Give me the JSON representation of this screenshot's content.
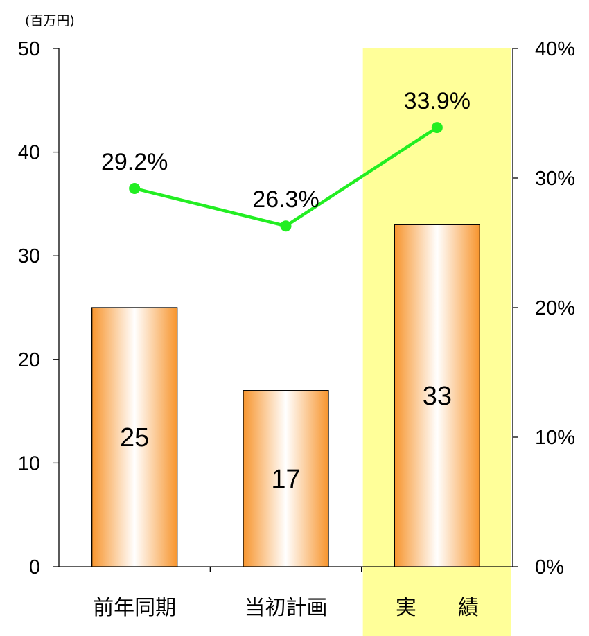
{
  "chart_data": {
    "type": "bar",
    "unit_label": "(百万円)",
    "categories": [
      "前年同期",
      "当初計画",
      "実　　績"
    ],
    "bar_series": {
      "values": [
        25,
        17,
        33
      ],
      "color": "#f7952e"
    },
    "line_series": {
      "values": [
        29.2,
        26.3,
        33.9
      ],
      "labels": [
        "29.2%",
        "26.3%",
        "33.9%"
      ],
      "color": "#22ee22"
    },
    "highlight_category_index": 2,
    "highlight_color": "#ffff99",
    "left_axis": {
      "ylim": [
        0,
        50
      ],
      "ticks": [
        "0",
        "10",
        "20",
        "30",
        "40",
        "50"
      ],
      "tick_values": [
        0,
        10,
        20,
        30,
        40,
        50
      ]
    },
    "right_axis": {
      "ylim": [
        0,
        40
      ],
      "ticks": [
        "0%",
        "10%",
        "20%",
        "30%",
        "40%"
      ],
      "tick_values": [
        0,
        10,
        20,
        30,
        40
      ]
    },
    "grid": false,
    "legend": "none"
  }
}
